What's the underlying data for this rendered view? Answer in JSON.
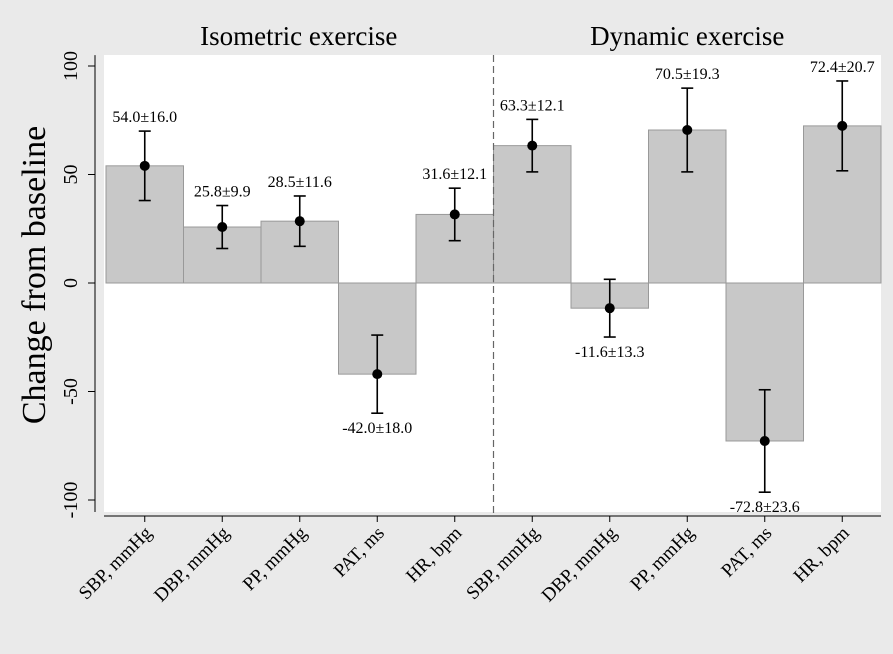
{
  "chart_data": {
    "type": "bar",
    "ylabel": "Change from baseline",
    "ylim": [
      -105,
      105
    ],
    "yticks": [
      100,
      50,
      0,
      -50,
      -100
    ],
    "grid": false,
    "colors": {
      "bar": "#c8c8c8",
      "bar_edge": "#999999",
      "panel": "#ffffff",
      "background": "#eaeaea",
      "divider": "#666666"
    },
    "panels": [
      {
        "title": "Isometric exercise",
        "categories": [
          "SBP, mmHg",
          "DBP, mmHg",
          "PP, mmHg",
          "PAT, ms",
          "HR, bpm"
        ],
        "values": [
          54.0,
          25.8,
          28.5,
          -42.0,
          31.6
        ],
        "errors": [
          16.0,
          9.9,
          11.6,
          18.0,
          12.1
        ],
        "labels": [
          "54.0±16.0",
          "25.8±9.9",
          "28.5±11.6",
          "-42.0±18.0",
          "31.6±12.1"
        ]
      },
      {
        "title": "Dynamic exercise",
        "categories": [
          "SBP, mmHg",
          "DBP, mmHg",
          "PP, mmHg",
          "PAT, ms",
          "HR, bpm"
        ],
        "values": [
          63.3,
          -11.6,
          70.5,
          -72.8,
          72.4
        ],
        "errors": [
          12.1,
          13.3,
          19.3,
          23.6,
          20.7
        ],
        "labels": [
          "63.3±12.1",
          "-11.6±13.3",
          "70.5±19.3",
          "-72.8±23.6",
          "72.4±20.7"
        ]
      }
    ]
  }
}
